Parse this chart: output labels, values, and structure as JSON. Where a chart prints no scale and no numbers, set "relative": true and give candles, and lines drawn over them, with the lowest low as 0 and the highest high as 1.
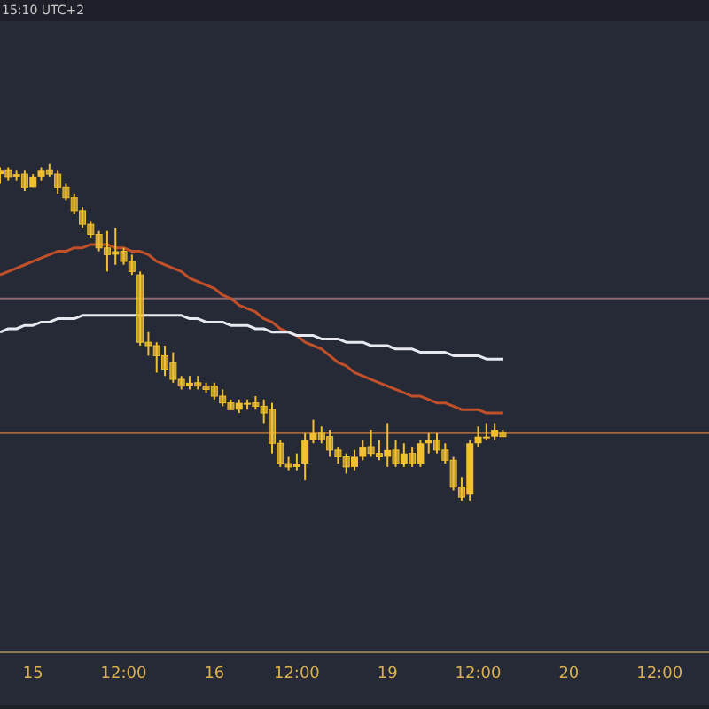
{
  "chart_data": {
    "type": "candlestick",
    "relative": true,
    "color": "#f0c030",
    "annotations": [
      "15:10 UTC+2"
    ],
    "categories": [
      null,
      null,
      null,
      null,
      "15",
      null,
      null,
      null,
      null,
      null,
      null,
      null,
      null,
      null,
      null,
      "12:00",
      null,
      null,
      null,
      null,
      null,
      null,
      null,
      null,
      null,
      null,
      "16",
      null,
      null,
      null,
      null,
      null,
      null,
      null,
      null,
      null,
      "12:00",
      null,
      null,
      null,
      null,
      null,
      null,
      null,
      null,
      null,
      null,
      "19",
      null,
      null,
      null,
      null,
      null,
      null,
      null,
      null,
      null,
      null,
      "12:00",
      null,
      null,
      null,
      null,
      null,
      null,
      null,
      null,
      null,
      null,
      "20",
      null,
      null,
      null,
      null,
      null,
      null,
      null,
      null,
      null,
      null,
      "12:00",
      null,
      null,
      null,
      null,
      null,
      null
    ],
    "ohlc": [
      [
        0.97,
        0.99,
        0.94,
        0.98
      ],
      [
        0.98,
        0.99,
        0.95,
        0.96
      ],
      [
        0.96,
        0.98,
        0.95,
        0.97
      ],
      [
        0.97,
        0.98,
        0.92,
        0.93
      ],
      [
        0.93,
        0.97,
        0.93,
        0.96
      ],
      [
        0.96,
        0.99,
        0.95,
        0.98
      ],
      [
        0.98,
        1,
        0.96,
        0.97
      ],
      [
        0.97,
        0.98,
        0.91,
        0.93
      ],
      [
        0.93,
        0.94,
        0.89,
        0.9
      ],
      [
        0.9,
        0.91,
        0.85,
        0.86
      ],
      [
        0.86,
        0.87,
        0.81,
        0.82
      ],
      [
        0.82,
        0.83,
        0.78,
        0.79
      ],
      [
        0.79,
        0.8,
        0.74,
        0.75
      ],
      [
        0.75,
        0.8,
        0.68,
        0.73
      ],
      [
        0.73,
        0.81,
        0.7,
        0.74
      ],
      [
        0.74,
        0.75,
        0.7,
        0.71
      ],
      [
        0.71,
        0.73,
        0.67,
        0.68
      ],
      [
        0.67,
        0.68,
        0.46,
        0.47
      ],
      [
        0.47,
        0.5,
        0.43,
        0.46
      ],
      [
        0.46,
        0.47,
        0.38,
        0.43
      ],
      [
        0.43,
        0.46,
        0.37,
        0.39
      ],
      [
        0.41,
        0.44,
        0.35,
        0.36
      ],
      [
        0.36,
        0.37,
        0.33,
        0.34
      ],
      [
        0.34,
        0.37,
        0.33,
        0.35
      ],
      [
        0.35,
        0.37,
        0.33,
        0.34
      ],
      [
        0.34,
        0.35,
        0.32,
        0.33
      ],
      [
        0.34,
        0.35,
        0.3,
        0.31
      ],
      [
        0.31,
        0.33,
        0.28,
        0.29
      ],
      [
        0.29,
        0.3,
        0.27,
        0.27
      ],
      [
        0.27,
        0.3,
        0.26,
        0.29
      ],
      [
        0.29,
        0.3,
        0.27,
        0.29
      ],
      [
        0.29,
        0.31,
        0.27,
        0.28
      ],
      [
        0.28,
        0.3,
        0.23,
        0.26
      ],
      [
        0.27,
        0.29,
        0.14,
        0.17
      ],
      [
        0.17,
        0.18,
        0.1,
        0.11
      ],
      [
        0.11,
        0.13,
        0.09,
        0.1
      ],
      [
        0.1,
        0.14,
        0.09,
        0.11
      ],
      [
        0.11,
        0.2,
        0.06,
        0.18
      ],
      [
        0.18,
        0.24,
        0.17,
        0.2
      ],
      [
        0.2,
        0.22,
        0.17,
        0.18
      ],
      [
        0.19,
        0.21,
        0.13,
        0.15
      ],
      [
        0.15,
        0.16,
        0.11,
        0.13
      ],
      [
        0.13,
        0.14,
        0.08,
        0.1
      ],
      [
        0.1,
        0.15,
        0.09,
        0.13
      ],
      [
        0.13,
        0.18,
        0.12,
        0.16
      ],
      [
        0.16,
        0.21,
        0.13,
        0.14
      ],
      [
        0.14,
        0.18,
        0.12,
        0.13
      ],
      [
        0.13,
        0.23,
        0.1,
        0.15
      ],
      [
        0.15,
        0.18,
        0.1,
        0.11
      ],
      [
        0.11,
        0.17,
        0.1,
        0.14
      ],
      [
        0.14,
        0.16,
        0.1,
        0.11
      ],
      [
        0.11,
        0.18,
        0.1,
        0.17
      ],
      [
        0.17,
        0.2,
        0.14,
        0.18
      ],
      [
        0.18,
        0.2,
        0.14,
        0.15
      ],
      [
        0.15,
        0.17,
        0.11,
        0.12
      ],
      [
        0.12,
        0.13,
        0.03,
        0.04
      ],
      [
        0.04,
        0.07,
        0,
        0.01
      ],
      [
        0.02,
        0.18,
        0,
        0.17
      ],
      [
        0.17,
        0.22,
        0.16,
        0.19
      ],
      [
        0.19,
        0.23,
        0.18,
        0.19
      ],
      [
        0.19,
        0.23,
        0.18,
        0.21
      ],
      [
        0.2,
        0.21,
        0.19,
        0.19
      ],
      null,
      null,
      null,
      null,
      null,
      null,
      null,
      null,
      null,
      null,
      null,
      null,
      null,
      null,
      null,
      null,
      null,
      null,
      null,
      null,
      null,
      null,
      null,
      null,
      null
    ],
    "series": [
      {
        "type": "line",
        "color": "#c0502a",
        "values": [
          0.67,
          0.68,
          0.69,
          0.7,
          0.71,
          0.72,
          0.73,
          0.74,
          0.74,
          0.75,
          0.75,
          0.76,
          0.76,
          0.76,
          0.75,
          0.75,
          0.74,
          0.74,
          0.73,
          0.71,
          0.7,
          0.69,
          0.68,
          0.66,
          0.65,
          0.64,
          0.63,
          0.61,
          0.6,
          0.58,
          0.57,
          0.56,
          0.54,
          0.53,
          0.51,
          0.5,
          0.49,
          0.47,
          0.46,
          0.45,
          0.43,
          0.41,
          0.4,
          0.38,
          0.37,
          0.36,
          0.35,
          0.34,
          0.33,
          0.32,
          0.31,
          0.31,
          0.3,
          0.29,
          0.29,
          0.28,
          0.27,
          0.27,
          0.27,
          0.26,
          0.26,
          0.26,
          null,
          null,
          null,
          null,
          null,
          null,
          null,
          null,
          null,
          null,
          null,
          null,
          null,
          null,
          null,
          null,
          null,
          null,
          null,
          null,
          null,
          null,
          null,
          null,
          null
        ]
      },
      {
        "type": "line",
        "color": "#e8e8f0",
        "values": [
          0.5,
          0.51,
          0.51,
          0.52,
          0.52,
          0.53,
          0.53,
          0.54,
          0.54,
          0.54,
          0.55,
          0.55,
          0.55,
          0.55,
          0.55,
          0.55,
          0.55,
          0.55,
          0.55,
          0.55,
          0.55,
          0.55,
          0.55,
          0.54,
          0.54,
          0.53,
          0.53,
          0.53,
          0.52,
          0.52,
          0.52,
          0.51,
          0.51,
          0.5,
          0.5,
          0.5,
          0.49,
          0.49,
          0.49,
          0.48,
          0.48,
          0.48,
          0.47,
          0.47,
          0.47,
          0.46,
          0.46,
          0.46,
          0.45,
          0.45,
          0.45,
          0.44,
          0.44,
          0.44,
          0.44,
          0.43,
          0.43,
          0.43,
          0.43,
          0.42,
          0.42,
          0.42,
          null,
          null,
          null,
          null,
          null,
          null,
          null,
          null,
          null,
          null,
          null,
          null,
          null,
          null,
          null,
          null,
          null,
          null,
          null,
          null,
          null,
          null,
          null,
          null,
          null
        ]
      }
    ],
    "ref_lines": [
      {
        "axis": "y",
        "value": 0.6,
        "color": "#8a6a70"
      },
      {
        "axis": "y",
        "value": 0.2,
        "color": "#a0683a"
      }
    ]
  }
}
